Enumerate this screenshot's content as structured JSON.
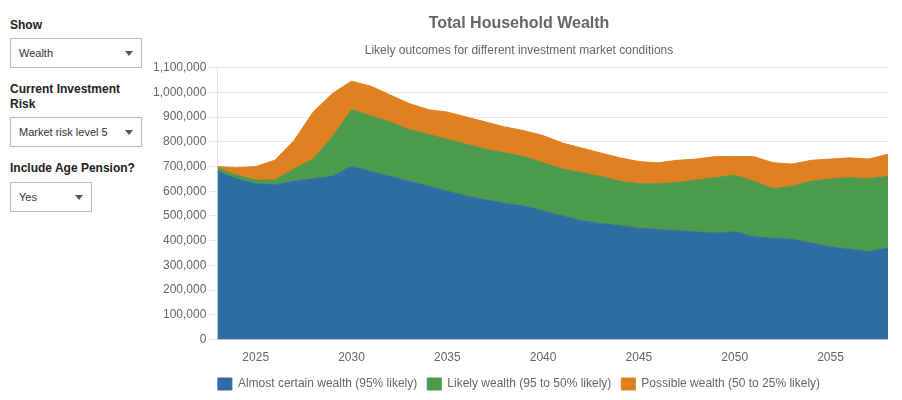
{
  "chart_data": {
    "type": "area",
    "title": "Total Household Wealth",
    "subtitle": "Likely outcomes for different investment market conditions",
    "annotations": [
      "Show",
      "Wealth",
      "Current Investment Risk",
      "Market risk level 5",
      "Include Age Pension?",
      "Yes"
    ],
    "x": [
      2023,
      2024,
      2025,
      2026,
      2027,
      2028,
      2029,
      2030,
      2031,
      2032,
      2033,
      2034,
      2035,
      2036,
      2037,
      2038,
      2039,
      2040,
      2041,
      2042,
      2043,
      2044,
      2045,
      2046,
      2047,
      2048,
      2049,
      2050,
      2051,
      2052,
      2053,
      2054,
      2055,
      2056,
      2057,
      2058
    ],
    "series": [
      {
        "name": "Almost certain wealth (95% likely)",
        "color": "#2E6DA4",
        "values": [
          680000,
          650000,
          630000,
          625000,
          640000,
          650000,
          660000,
          700000,
          680000,
          660000,
          640000,
          620000,
          600000,
          580000,
          565000,
          550000,
          540000,
          520000,
          500000,
          480000,
          470000,
          460000,
          450000,
          445000,
          440000,
          435000,
          430000,
          435000,
          415000,
          410000,
          405000,
          390000,
          375000,
          365000,
          355000,
          370000
        ]
      },
      {
        "name": "Likely wealth (95 to 50% likely)",
        "color": "#4C9A4C",
        "values": [
          15000,
          15000,
          15000,
          20000,
          50000,
          80000,
          160000,
          230000,
          225000,
          220000,
          210000,
          210000,
          210000,
          210000,
          205000,
          205000,
          200000,
          195000,
          190000,
          195000,
          190000,
          180000,
          180000,
          185000,
          195000,
          210000,
          225000,
          230000,
          225000,
          200000,
          215000,
          250000,
          275000,
          290000,
          295000,
          290000
        ]
      },
      {
        "name": "Possible wealth (50 to 25% likely)",
        "color": "#E08020",
        "values": [
          5000,
          30000,
          55000,
          80000,
          115000,
          190000,
          175000,
          115000,
          120000,
          110000,
          105000,
          100000,
          110000,
          110000,
          110000,
          105000,
          105000,
          110000,
          105000,
          100000,
          95000,
          95000,
          90000,
          85000,
          90000,
          85000,
          85000,
          75000,
          100000,
          105000,
          90000,
          85000,
          80000,
          80000,
          80000,
          90000
        ]
      }
    ],
    "stacked": true,
    "xlim": [
      2023,
      2058
    ],
    "xticks": [
      2025,
      2030,
      2035,
      2040,
      2045,
      2050,
      2055
    ],
    "ylim": [
      0,
      1100000
    ],
    "yticks": [
      0,
      {
        "value": 100000,
        "label": "100,000"
      },
      {
        "value": 200000,
        "label": "200,000"
      },
      {
        "value": 300000,
        "label": "300,000"
      },
      {
        "value": 400000,
        "label": "400,000"
      },
      {
        "value": 500000,
        "label": "500,000"
      },
      {
        "value": 600000,
        "label": "600,000"
      },
      {
        "value": 700000,
        "label": "700,000"
      },
      {
        "value": 800000,
        "label": "800,000"
      },
      {
        "value": 900000,
        "label": "900,000"
      },
      {
        "value": 1000000,
        "label": "1,000,000"
      },
      {
        "value": 1100000,
        "label": "1,100,000"
      }
    ],
    "grid": true,
    "legend": "bottom"
  }
}
